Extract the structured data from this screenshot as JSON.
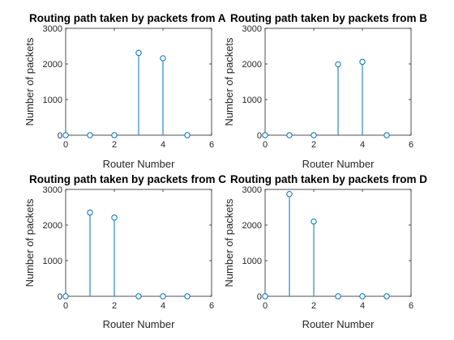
{
  "chart_data": [
    {
      "type": "stem",
      "title": "Routing path taken by packets from A",
      "xlabel": "Router Number",
      "ylabel": "Number of packets",
      "xlim": [
        0,
        6
      ],
      "ylim": [
        0,
        3000
      ],
      "xticks": [
        "0",
        "2",
        "4",
        "6"
      ],
      "yticks": [
        "0",
        "1000",
        "2000",
        "3000"
      ],
      "x": [
        0,
        1,
        2,
        3,
        4,
        5
      ],
      "values": [
        0,
        0,
        0,
        2310,
        2160,
        0
      ]
    },
    {
      "type": "stem",
      "title": "Routing path taken by packets from B",
      "xlabel": "Router Number",
      "ylabel": "Number of packets",
      "xlim": [
        0,
        6
      ],
      "ylim": [
        0,
        3000
      ],
      "xticks": [
        "0",
        "2",
        "4",
        "6"
      ],
      "yticks": [
        "0",
        "1000",
        "2000",
        "3000"
      ],
      "x": [
        0,
        1,
        2,
        3,
        4,
        5
      ],
      "values": [
        0,
        0,
        0,
        1990,
        2060,
        0
      ]
    },
    {
      "type": "stem",
      "title": "Routing path taken by packets from C",
      "xlabel": "Router Number",
      "ylabel": "Number of packets",
      "xlim": [
        0,
        6
      ],
      "ylim": [
        0,
        3000
      ],
      "xticks": [
        "0",
        "2",
        "4",
        "6"
      ],
      "yticks": [
        "0",
        "1000",
        "2000",
        "3000"
      ],
      "x": [
        0,
        1,
        2,
        3,
        4,
        5
      ],
      "values": [
        0,
        2350,
        2210,
        0,
        0,
        0
      ]
    },
    {
      "type": "stem",
      "title": "Routing path taken by packets from D",
      "xlabel": "Router Number",
      "ylabel": "Number of packets",
      "xlim": [
        0,
        6
      ],
      "ylim": [
        0,
        3000
      ],
      "xticks": [
        "0",
        "2",
        "4",
        "6"
      ],
      "yticks": [
        "0",
        "1000",
        "2000",
        "3000"
      ],
      "x": [
        0,
        1,
        2,
        3,
        4,
        5
      ],
      "values": [
        0,
        2870,
        2100,
        0,
        0,
        0
      ]
    }
  ],
  "colors": {
    "stem": "#0072bd",
    "axes": "#262626",
    "background": "#ffffff"
  }
}
